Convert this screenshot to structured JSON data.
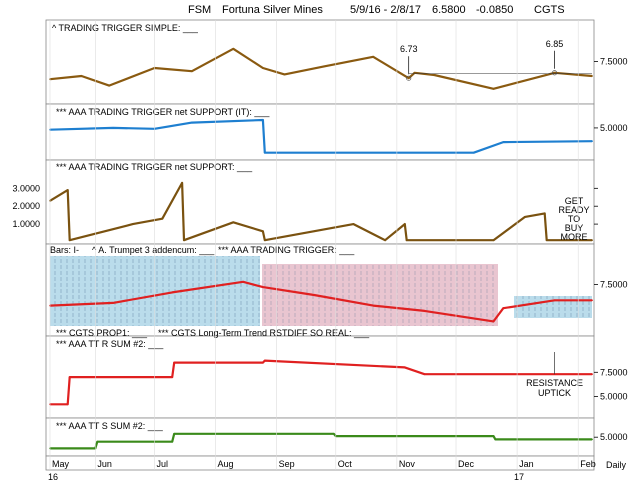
{
  "header": {
    "symbol": "FSM",
    "name": "Fortuna Silver Mines",
    "range": "5/9/16 - 2/8/17",
    "price": "6.5800",
    "change": "-0.0850",
    "ticker": "CGTS"
  },
  "footer": {
    "year_left": "16",
    "year_right": "17",
    "period": "Daily"
  },
  "chart_data": [
    {
      "type": "line",
      "title": "^ TRADING TRIGGER SIMPLE: ___",
      "x": [
        "2016-05-09",
        "2016-05-25",
        "2016-06-08",
        "2016-07-01",
        "2016-07-20",
        "2016-08-10",
        "2016-08-25",
        "2016-09-05",
        "2016-09-25",
        "2016-10-20",
        "2016-11-07",
        "2016-11-10",
        "2016-11-20",
        "2016-12-20",
        "2017-01-20",
        "2017-02-08"
      ],
      "series": [
        {
          "values": [
            6.95,
            7.05,
            6.75,
            7.3,
            7.2,
            7.9,
            7.3,
            7.1,
            7.35,
            7.65,
            6.98,
            7.15,
            7.08,
            6.65,
            7.15,
            7.05
          ],
          "color": "#8a5a10"
        }
      ],
      "yticks": [
        7.5
      ],
      "ylim": [
        6.3,
        8.3
      ],
      "annotations": [
        {
          "x": "2016-11-07",
          "y": 6.98,
          "text": "6.73"
        },
        {
          "x": "2017-01-20",
          "y": 7.15,
          "text": "6.85"
        }
      ]
    },
    {
      "type": "line",
      "title": "*** AAA TRADING TRIGGER net SUPPORT (IT): ___",
      "x": [
        "2016-05-09",
        "2016-06-10",
        "2016-07-01",
        "2016-07-20",
        "2016-08-25",
        "2016-08-26",
        "2016-12-10",
        "2016-12-25",
        "2017-02-08"
      ],
      "series": [
        {
          "values": [
            4.9,
            5.0,
            4.95,
            5.3,
            5.45,
            3.6,
            3.6,
            4.2,
            4.25
          ],
          "color": "#1e7fd0"
        }
      ],
      "yticks": [
        5.0
      ],
      "ylim": [
        3.3,
        5.9
      ]
    },
    {
      "type": "line",
      "title": "*** AAA TRADING TRIGGER net SUPPORT: ___",
      "x": [
        "2016-05-09",
        "2016-05-18",
        "2016-05-19",
        "2016-06-20",
        "2016-07-05",
        "2016-07-15",
        "2016-07-16",
        "2016-08-10",
        "2016-08-25",
        "2016-08-26",
        "2016-10-10",
        "2016-10-26",
        "2016-11-05",
        "2016-11-06",
        "2016-12-20",
        "2017-01-05",
        "2017-01-15",
        "2017-01-16",
        "2017-02-08"
      ],
      "series": [
        {
          "values": [
            2.3,
            2.9,
            0.1,
            1.0,
            1.3,
            3.3,
            0.1,
            1.1,
            0.6,
            0.1,
            1.0,
            0.1,
            1.0,
            0.1,
            0.1,
            1.4,
            1.6,
            0.1,
            0.1
          ],
          "color": "#7a5210"
        }
      ],
      "yticks": [
        1.0,
        2.0,
        3.0
      ],
      "ytick_labels": [
        "1.0000",
        "2.0000",
        "3.0000"
      ],
      "ylim": [
        0,
        3.8
      ],
      "annotations": [
        {
          "text": "GET READY TO BUY MORE"
        }
      ]
    },
    {
      "type": "line",
      "title": "*** AAA TRADING TRIGGER: ___",
      "labels": [
        "Bars: I-",
        "^ A. Trumpet 3 addencum: ___"
      ],
      "x": [
        "2016-05-09",
        "2016-06-10",
        "2016-07-10",
        "2016-08-15",
        "2016-08-25",
        "2016-09-20",
        "2016-10-20",
        "2016-11-15",
        "2016-12-20",
        "2016-12-25",
        "2017-01-20",
        "2017-02-08"
      ],
      "series": [
        {
          "values": [
            7.1,
            7.15,
            7.35,
            7.55,
            7.45,
            7.3,
            7.1,
            7.0,
            6.8,
            7.05,
            7.2,
            7.2
          ],
          "color": "#e02020"
        }
      ],
      "yticks": [
        7.5
      ],
      "ylim": [
        6.6,
        8.0
      ]
    },
    {
      "type": "line",
      "title": "*** CGTS Long-Term Trend RSTDIFF SO REAL: ___",
      "labels": [
        "*** CGTS PROP1: ___",
        "*** AAA TT R SUM #2: ___"
      ],
      "x": [
        "2016-05-09",
        "2016-05-18",
        "2016-05-19",
        "2016-07-10",
        "2016-07-11",
        "2016-08-25",
        "2016-08-26",
        "2016-11-05",
        "2016-11-15",
        "2017-02-08"
      ],
      "series": [
        {
          "values": [
            4.2,
            4.2,
            7.0,
            7.0,
            8.5,
            8.5,
            8.7,
            8.0,
            7.3,
            7.3
          ],
          "color": "#e02020"
        }
      ],
      "yticks": [
        5.0,
        7.5
      ],
      "ylim": [
        3.0,
        10.0
      ],
      "annotations": [
        {
          "x": "2017-01-20",
          "y": 7.3,
          "text": "RESISTANCE UPTICK"
        }
      ]
    },
    {
      "type": "line",
      "title": "*** AAA TT S SUM #2: ___",
      "x": [
        "2016-05-09",
        "2016-06-01",
        "2016-06-02",
        "2016-07-10",
        "2016-07-11",
        "2016-09-30",
        "2016-10-01",
        "2016-12-20",
        "2016-12-21",
        "2017-02-08"
      ],
      "series": [
        {
          "values": [
            4.0,
            4.0,
            4.6,
            4.6,
            5.3,
            5.3,
            5.1,
            5.1,
            4.8,
            4.8
          ],
          "color": "#3a8a1a"
        }
      ],
      "yticks": [
        5.0
      ],
      "ylim": [
        3.5,
        6.0
      ]
    }
  ],
  "xaxis": {
    "ticks": [
      {
        "date": "2016-05-09",
        "label": "May"
      },
      {
        "date": "2016-06-01",
        "label": "Jun"
      },
      {
        "date": "2016-07-01",
        "label": "Jul"
      },
      {
        "date": "2016-08-01",
        "label": "Aug"
      },
      {
        "date": "2016-09-01",
        "label": "Sep"
      },
      {
        "date": "2016-10-01",
        "label": "Oct"
      },
      {
        "date": "2016-11-01",
        "label": "Nov"
      },
      {
        "date": "2016-12-01",
        "label": "Dec"
      },
      {
        "date": "2017-01-01",
        "label": "Jan"
      },
      {
        "date": "2017-02-01",
        "label": "Feb"
      }
    ]
  }
}
